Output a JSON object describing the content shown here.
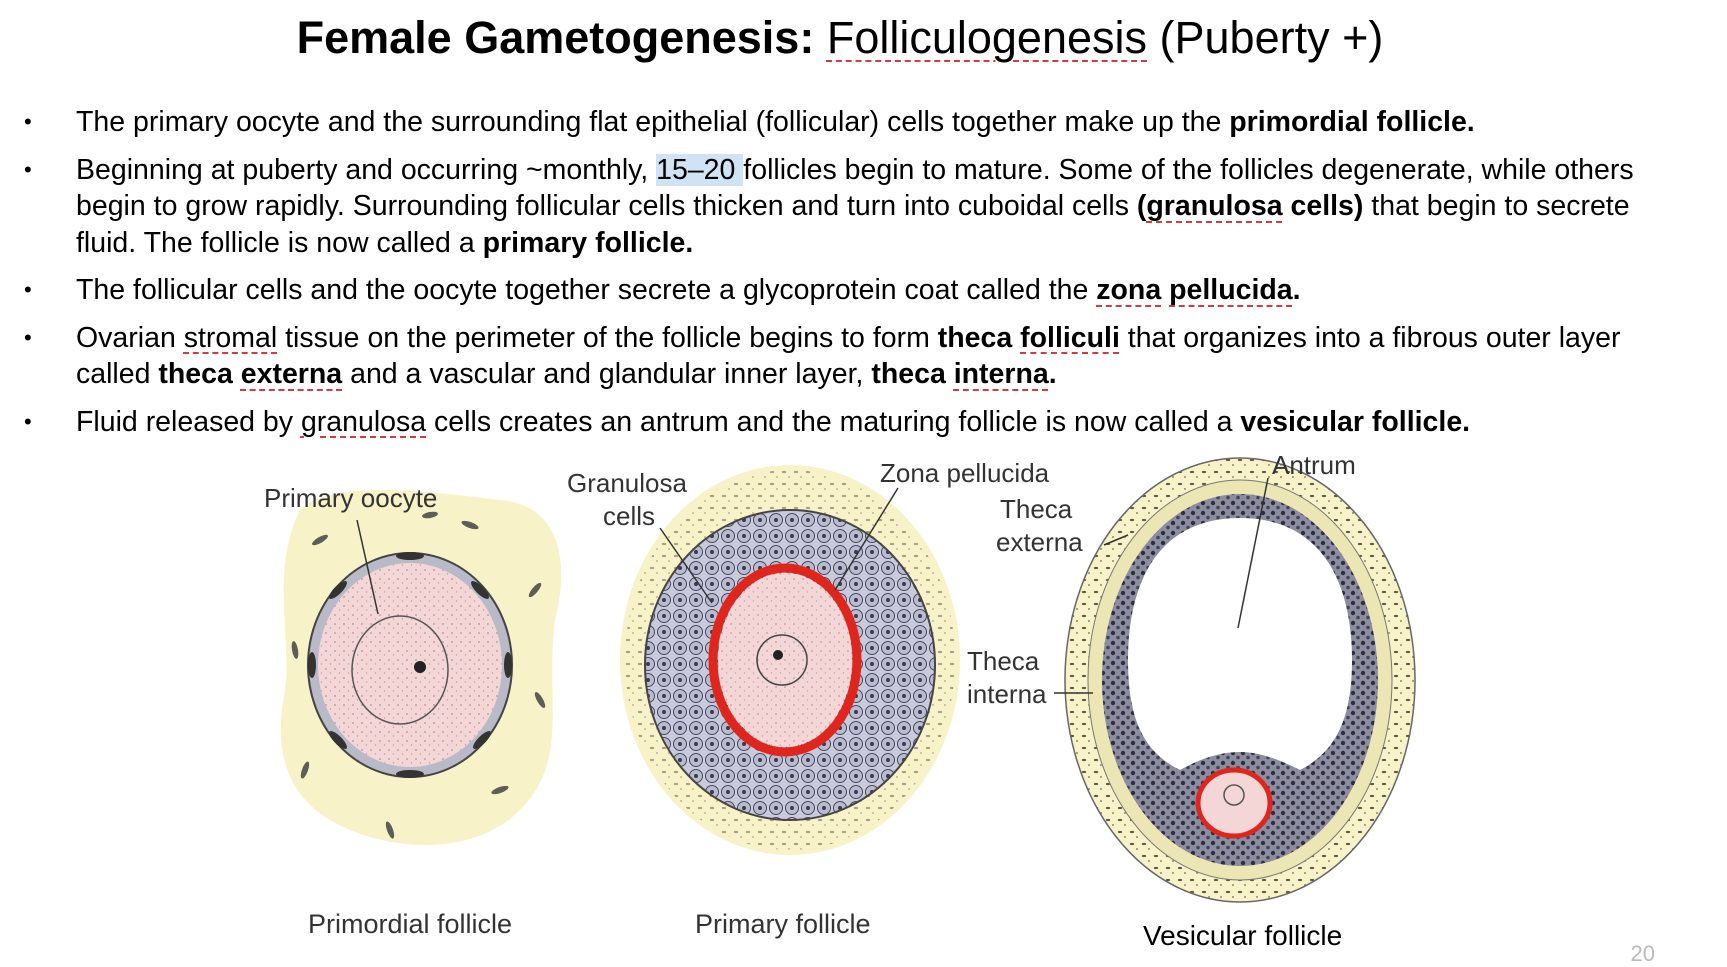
{
  "title": {
    "bold": "Female Gametogenesis:",
    "term": "Folliculogenesis",
    "rest": "(Puberty +)"
  },
  "bullets": {
    "b1": {
      "text": "The primary oocyte and the surrounding flat epithelial (follicular) cells together make up the ",
      "bold": "primordial follicle."
    },
    "b2": {
      "t1": "Beginning at puberty and occurring  ~monthly, ",
      "hl": "15–20 ",
      "t2": "follicles begin to mature. Some of the follicles degenerate, while others begin to grow rapidly. Surrounding follicular cells thicken and turn into cuboidal cells ",
      "b_open": "(",
      "b_term": "granulosa",
      "b_close": " cells)",
      "t3": " that begin to secrete fluid. The follicle is now called a ",
      "bold": "primary follicle."
    },
    "b3": {
      "text": "The follicular cells and the oocyte together secrete a glycoprotein coat called the ",
      "term1": "zona",
      "sp": " ",
      "term2": "pellucida",
      "end": "."
    },
    "b4": {
      "t1": "Ovarian ",
      "stromal": "stromal",
      "t2": " tissue on the perimeter of the follicle begins to form ",
      "tf_a": "theca ",
      "tf_b": "folliculi",
      "t3": " that organizes into a fibrous outer layer called ",
      "te_a": "theca ",
      "te_b": "externa",
      "t4": " and a vascular and glandular inner layer, ",
      "ti_a": "theca ",
      "ti_b": "interna",
      "ti_end": "."
    },
    "b5": {
      "t1": "Fluid released by ",
      "term": "granulosa",
      "t2": " cells creates an antrum and the maturing follicle is now called a ",
      "bold": "vesicular follicle."
    }
  },
  "figure": {
    "labels": {
      "primary_oocyte": "Primary oocyte",
      "granulosa_1": "Granulosa",
      "granulosa_2": "cells",
      "zona": "Zona pellucida",
      "theca_ext_1": "Theca",
      "theca_ext_2": "externa",
      "antrum": "Antrum",
      "theca_int_1": "Theca",
      "theca_int_2": "interna"
    },
    "captions": {
      "primordial": "Primordial follicle",
      "primary": "Primary follicle",
      "vesicular": "Vesicular follicle"
    }
  },
  "slide_number": "20",
  "colors": {
    "zona_red": "#e0261c",
    "oocyte_pink": "#f4d6d6",
    "stroma_yellow": "#f7f2c8",
    "granulosa_gray": "#9fa0b5"
  }
}
